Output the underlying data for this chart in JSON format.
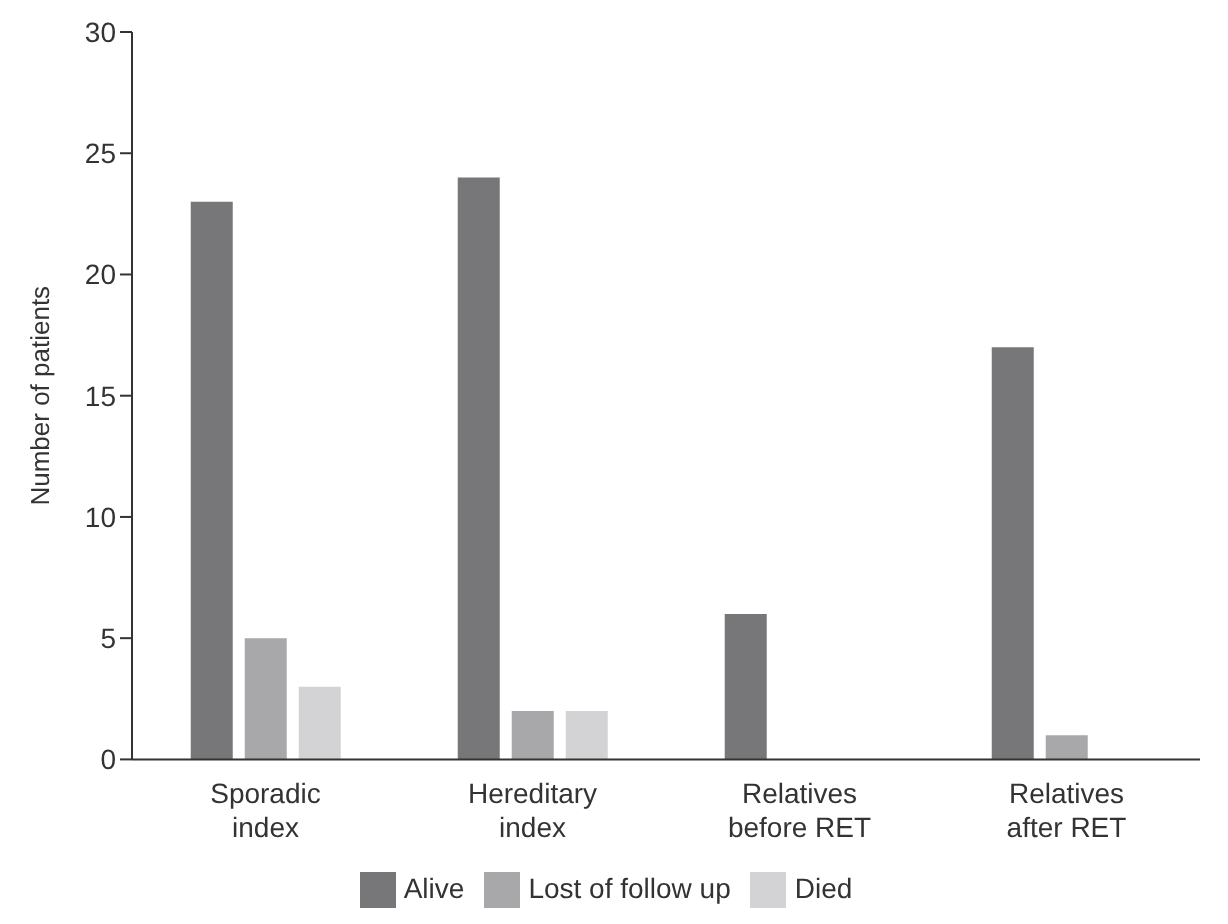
{
  "chart_data": {
    "type": "bar",
    "ylabel": "Number of patients",
    "categories": [
      "Sporadic index",
      "Hereditary index",
      "Relatives before RET",
      "Relatives after RET"
    ],
    "series": [
      {
        "name": "Alive",
        "color": "#77777a",
        "values": [
          23,
          24,
          6,
          17
        ]
      },
      {
        "name": "Lost of follow up",
        "color": "#a8a8aa",
        "values": [
          5,
          2,
          0,
          1
        ]
      },
      {
        "name": "Died",
        "color": "#d3d3d5",
        "values": [
          3,
          2,
          0,
          0
        ]
      }
    ],
    "ylim": [
      0,
      30
    ],
    "yticks": [
      0,
      5,
      10,
      15,
      20,
      25,
      30
    ],
    "grid": false,
    "legend": "bottom"
  }
}
